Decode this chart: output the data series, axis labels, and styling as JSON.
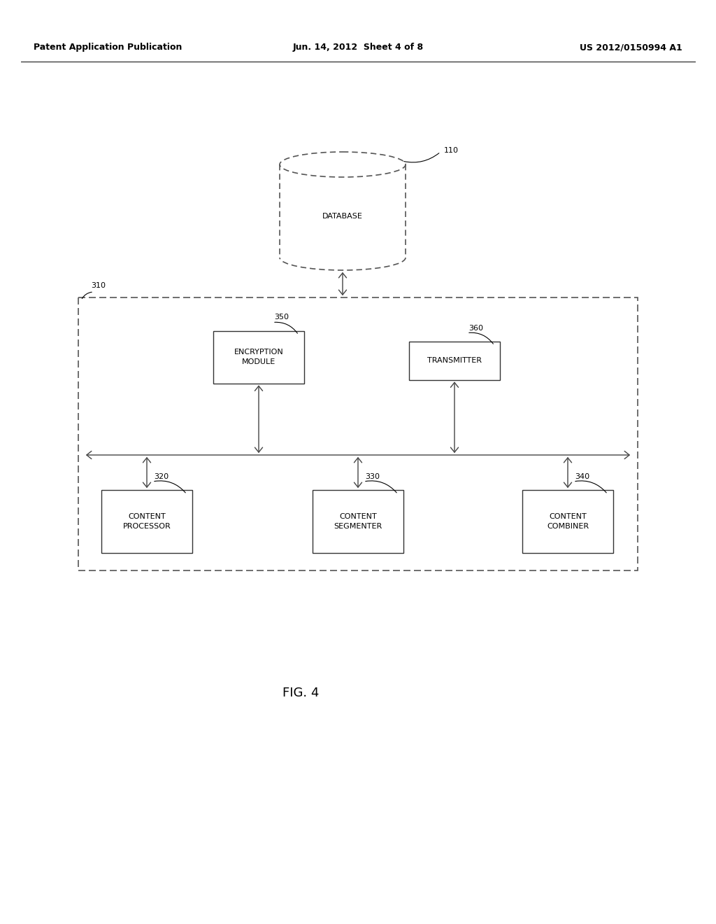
{
  "bg_color": "#ffffff",
  "header_left": "Patent Application Publication",
  "header_center": "Jun. 14, 2012  Sheet 4 of 8",
  "header_right": "US 2012/0150994 A1",
  "fig_label": "FIG. 4",
  "db_label": "DATABASE",
  "db_ref": "110",
  "outer_box_ref": "310",
  "enc_ref": "350",
  "trans_ref": "360",
  "cp_ref": "320",
  "cs_ref": "330",
  "cc_ref": "340",
  "font_size_header": 9,
  "font_size_label": 8,
  "font_size_ref": 8,
  "font_size_fig": 13
}
